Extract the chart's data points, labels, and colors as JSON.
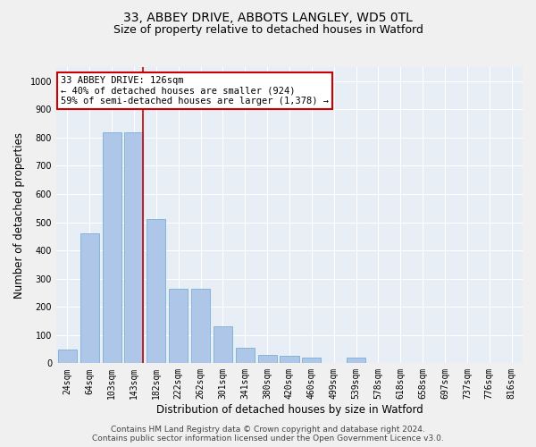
{
  "title_line1": "33, ABBEY DRIVE, ABBOTS LANGLEY, WD5 0TL",
  "title_line2": "Size of property relative to detached houses in Watford",
  "xlabel": "Distribution of detached houses by size in Watford",
  "ylabel": "Number of detached properties",
  "footer_line1": "Contains HM Land Registry data © Crown copyright and database right 2024.",
  "footer_line2": "Contains public sector information licensed under the Open Government Licence v3.0.",
  "annotation_line1": "33 ABBEY DRIVE: 126sqm",
  "annotation_line2": "← 40% of detached houses are smaller (924)",
  "annotation_line3": "59% of semi-detached houses are larger (1,378) →",
  "bar_labels": [
    "24sqm",
    "64sqm",
    "103sqm",
    "143sqm",
    "182sqm",
    "222sqm",
    "262sqm",
    "301sqm",
    "341sqm",
    "380sqm",
    "420sqm",
    "460sqm",
    "499sqm",
    "539sqm",
    "578sqm",
    "618sqm",
    "658sqm",
    "697sqm",
    "737sqm",
    "776sqm",
    "816sqm"
  ],
  "bar_values": [
    50,
    460,
    820,
    820,
    510,
    265,
    265,
    130,
    55,
    30,
    25,
    20,
    0,
    20,
    0,
    0,
    0,
    0,
    0,
    0,
    0
  ],
  "bar_color": "#aec6e8",
  "bar_edge_color": "#7aafd4",
  "property_line_x": 3.4,
  "ylim": [
    0,
    1050
  ],
  "yticks": [
    0,
    100,
    200,
    300,
    400,
    500,
    600,
    700,
    800,
    900,
    1000
  ],
  "bg_color": "#e8eef5",
  "grid_color": "#ffffff",
  "annotation_box_color": "#ffffff",
  "annotation_box_edge": "#cc0000",
  "red_line_color": "#cc0000",
  "title_fontsize": 10,
  "subtitle_fontsize": 9,
  "axis_label_fontsize": 8.5,
  "tick_fontsize": 7,
  "annotation_fontsize": 7.5,
  "footer_fontsize": 6.5
}
